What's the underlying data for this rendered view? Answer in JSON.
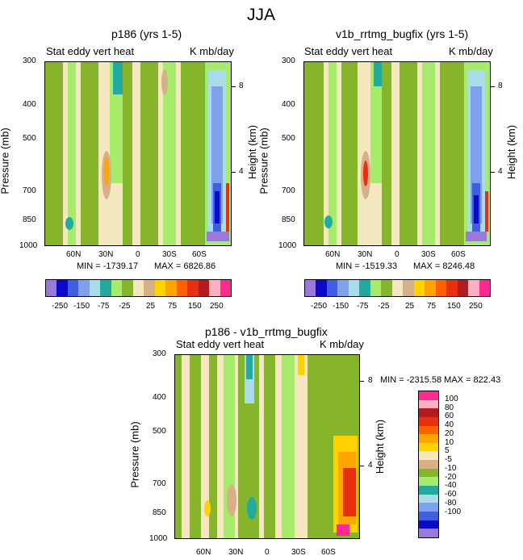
{
  "figure_title": "JJA",
  "chart_data": [
    {
      "type": "heatmap",
      "panel": "left",
      "title": "p186 (yrs 1-5)",
      "subtitle_left": "Stat eddy vert heat",
      "subtitle_right": "K mb/day",
      "ylabel": "Pressure (mb)",
      "ylabel_right": "Height (km)",
      "y_ticks": [
        "300",
        "400",
        "500",
        "700",
        "850",
        "1000"
      ],
      "y_right_ticks": [
        "8",
        "4"
      ],
      "x_ticks": [
        "60N",
        "30N",
        "0",
        "30S",
        "60S"
      ],
      "min_text": "MIN = -1739.17",
      "max_text": "MAX = 6826.86",
      "min": -1739.17,
      "max": 6826.86
    },
    {
      "type": "heatmap",
      "panel": "right",
      "title": "v1b_rrtmg_bugfix (yrs 1-5)",
      "subtitle_left": "Stat eddy vert heat",
      "subtitle_right": "K mb/day",
      "ylabel": "Pressure (mb)",
      "ylabel_right": "Height (km)",
      "y_ticks": [
        "300",
        "400",
        "500",
        "700",
        "850",
        "1000"
      ],
      "y_right_ticks": [
        "8",
        "4"
      ],
      "x_ticks": [
        "60N",
        "30N",
        "0",
        "30S",
        "60S"
      ],
      "min_text": "MIN = -1519.33",
      "max_text": "MAX = 8246.48",
      "min": -1519.33,
      "max": 8246.48
    },
    {
      "type": "heatmap",
      "panel": "difference",
      "title": "p186 - v1b_rrtmg_bugfix",
      "subtitle_left": "Stat eddy vert heat",
      "subtitle_right": "K mb/day",
      "ylabel": "Pressure (mb)",
      "ylabel_right": "Height (km)",
      "y_ticks": [
        "300",
        "400",
        "500",
        "700",
        "850",
        "1000"
      ],
      "y_right_ticks": [
        "8",
        "4"
      ],
      "x_ticks": [
        "60N",
        "30N",
        "0",
        "30S",
        "60S"
      ],
      "minmax_text": "MIN = -2315.58  MAX = 822.43",
      "min": -2315.58,
      "max": 822.43
    }
  ],
  "top_colorbar": {
    "colors": [
      "#9b79d8",
      "#0a0ac8",
      "#3f5fe0",
      "#7fa0ec",
      "#a8dcea",
      "#20aaa0",
      "#a6ec6a",
      "#86b42a",
      "#f5e8c0",
      "#d8b088",
      "#ffd200",
      "#ffa500",
      "#ff6000",
      "#e83010",
      "#b01c20",
      "#ffb0c0",
      "#ff2a90"
    ],
    "labels": [
      "-250",
      "-150",
      "-75",
      "-25",
      "25",
      "75",
      "150",
      "250"
    ]
  },
  "diff_colorbar": {
    "colors": [
      "#ff2a90",
      "#ffb0c0",
      "#b01c20",
      "#e83010",
      "#ff6000",
      "#ffa500",
      "#ffd200",
      "#f5e8c0",
      "#d8b088",
      "#86b42a",
      "#a6ec6a",
      "#20aaa0",
      "#a8dcea",
      "#7fa0ec",
      "#3f5fe0",
      "#0a0ac8",
      "#9b79d8"
    ],
    "labels": [
      "100",
      "80",
      "60",
      "40",
      "20",
      "10",
      "5",
      "-5",
      "-10",
      "-20",
      "-40",
      "-60",
      "-80",
      "-100"
    ]
  }
}
